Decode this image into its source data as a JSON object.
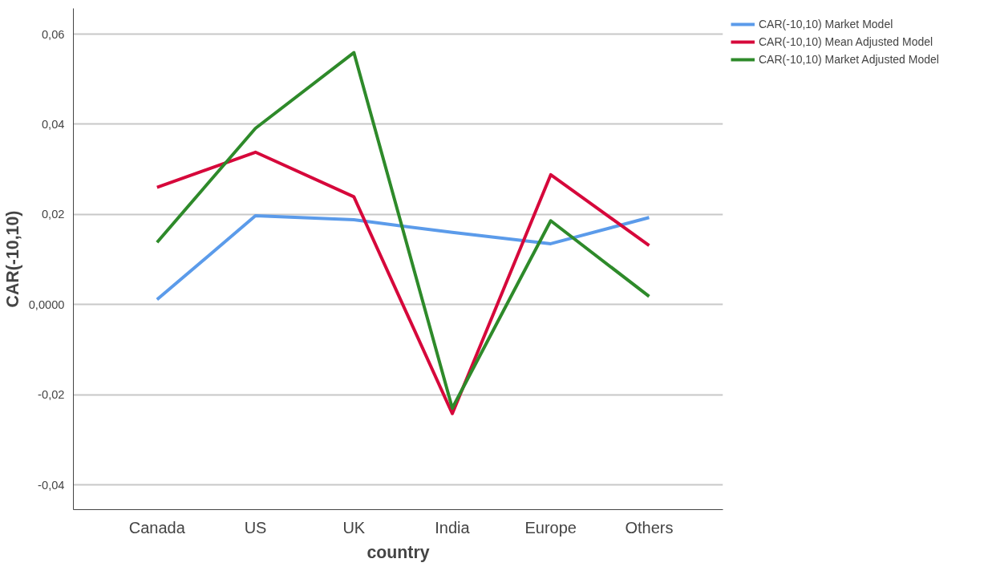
{
  "chart_data": {
    "type": "line",
    "xlabel": "country",
    "ylabel": "CAR(-10,10)",
    "categories": [
      "Canada",
      "US",
      "UK",
      "India",
      "Europe",
      "Others"
    ],
    "series": [
      {
        "name": "CAR(-10,10) Market Model",
        "color": "#5b9bea",
        "values": [
          0.0011,
          0.0197,
          0.0188,
          0.016,
          0.0135,
          0.0193
        ]
      },
      {
        "name": "CAR(-10,10) Mean Adjusted Model",
        "color": "#d6083b",
        "values": [
          0.026,
          0.0338,
          0.0239,
          -0.0242,
          0.0288,
          0.0131
        ]
      },
      {
        "name": "CAR(-10,10) Market Adjusted Model",
        "color": "#2e8a2a",
        "values": [
          0.0138,
          0.0391,
          0.0559,
          -0.023,
          0.0186,
          0.0018
        ]
      }
    ],
    "ylim": [
      -0.0455,
      0.0657
    ],
    "yticks": [
      {
        "value": -0.04,
        "label": "-0,04"
      },
      {
        "value": -0.02,
        "label": "-0,02"
      },
      {
        "value": 0,
        "label": "0,0000"
      },
      {
        "value": 0.02,
        "label": "0,02"
      },
      {
        "value": 0.04,
        "label": "0,04"
      },
      {
        "value": 0.06,
        "label": "0,06"
      }
    ],
    "grid": "y",
    "legend": "top right",
    "marker": "none",
    "line_style": "solid"
  }
}
